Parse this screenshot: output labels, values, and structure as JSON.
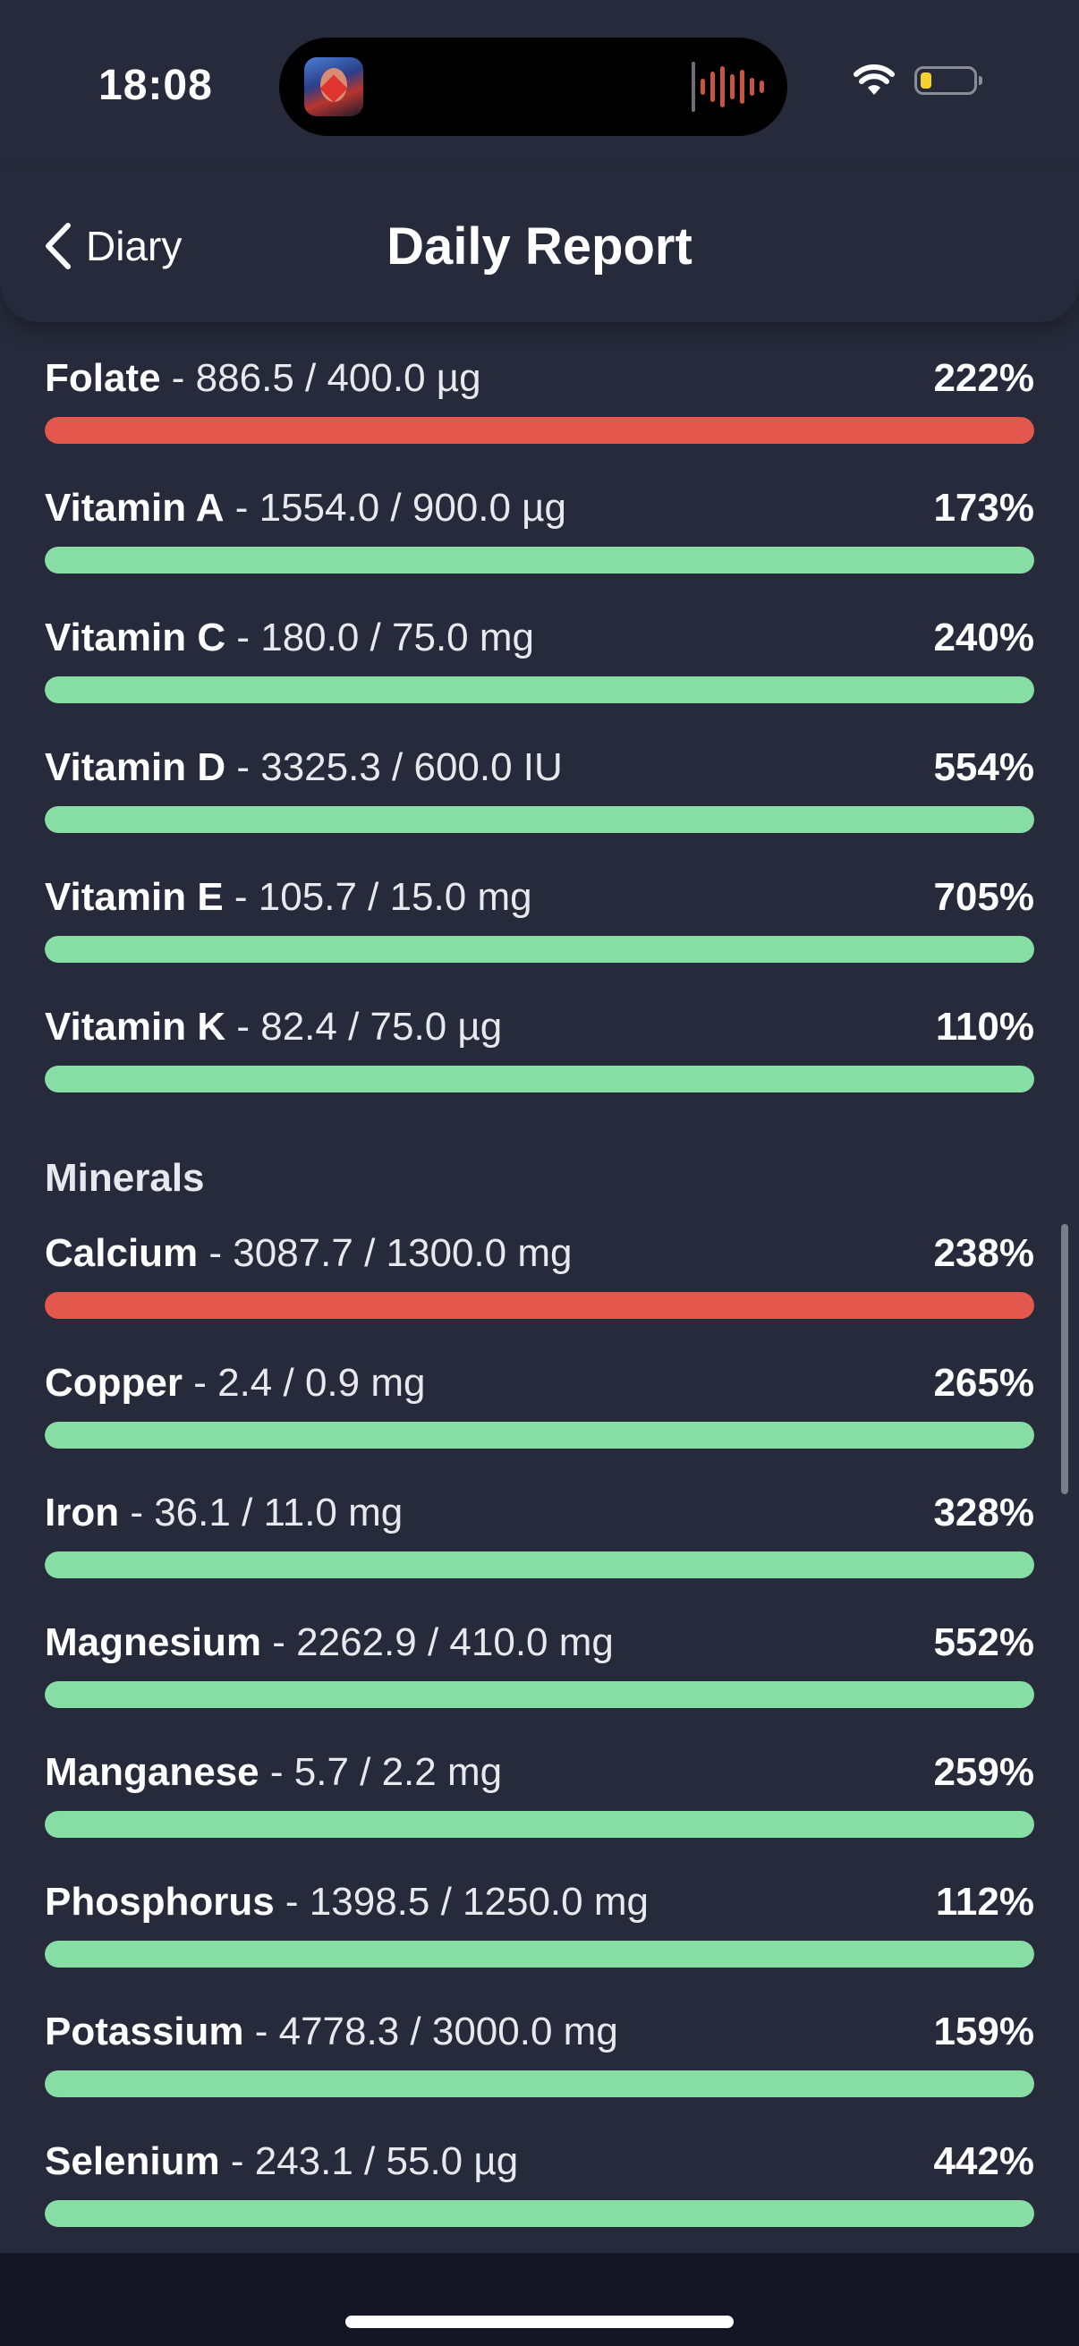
{
  "status_bar": {
    "time": "18:08",
    "battery_level": 0.2,
    "battery_color": "#f5d12d"
  },
  "nav": {
    "back_label": "Diary",
    "title": "Daily Report"
  },
  "colors": {
    "bar_over": "#e4574c",
    "bar_ok": "#86dea4",
    "background": "#272a3a"
  },
  "vitamins": [
    {
      "name": "Folate",
      "amount": " - 886.5 / 400.0 µg",
      "percent": "222%",
      "status": "over"
    },
    {
      "name": "Vitamin A",
      "amount": " - 1554.0 / 900.0 µg",
      "percent": "173%",
      "status": "ok"
    },
    {
      "name": "Vitamin C",
      "amount": " - 180.0 / 75.0 mg",
      "percent": "240%",
      "status": "ok"
    },
    {
      "name": "Vitamin D",
      "amount": " - 3325.3 / 600.0 IU",
      "percent": "554%",
      "status": "ok"
    },
    {
      "name": "Vitamin E",
      "amount": " - 105.7 / 15.0 mg",
      "percent": "705%",
      "status": "ok"
    },
    {
      "name": "Vitamin K",
      "amount": " - 82.4 / 75.0 µg",
      "percent": "110%",
      "status": "ok"
    }
  ],
  "minerals": {
    "header": "Minerals",
    "items": [
      {
        "name": "Calcium",
        "amount": " - 3087.7 / 1300.0 mg",
        "percent": "238%",
        "status": "over"
      },
      {
        "name": "Copper",
        "amount": " - 2.4 / 0.9 mg",
        "percent": "265%",
        "status": "ok"
      },
      {
        "name": "Iron",
        "amount": " - 36.1 / 11.0 mg",
        "percent": "328%",
        "status": "ok"
      },
      {
        "name": "Magnesium",
        "amount": " - 2262.9 / 410.0 mg",
        "percent": "552%",
        "status": "ok"
      },
      {
        "name": "Manganese",
        "amount": " - 5.7 / 2.2 mg",
        "percent": "259%",
        "status": "ok"
      },
      {
        "name": "Phosphorus",
        "amount": " - 1398.5 / 1250.0 mg",
        "percent": "112%",
        "status": "ok"
      },
      {
        "name": "Potassium",
        "amount": " - 4778.3 / 3000.0 mg",
        "percent": "159%",
        "status": "ok"
      },
      {
        "name": "Selenium",
        "amount": " - 243.1 / 55.0 µg",
        "percent": "442%",
        "status": "ok"
      }
    ]
  }
}
